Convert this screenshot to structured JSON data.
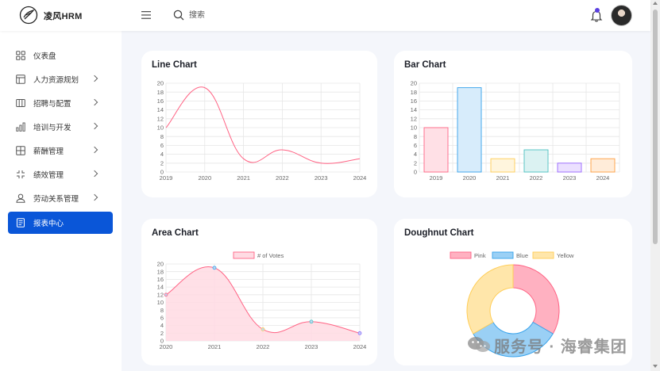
{
  "header": {
    "logo_text": "凌风HRM",
    "search_placeholder": "搜索"
  },
  "sidebar": {
    "items": [
      {
        "label": "仪表盘",
        "icon": "dashboard-icon",
        "has_chevron": false
      },
      {
        "label": "人力资源规划",
        "icon": "layout-icon",
        "has_chevron": true
      },
      {
        "label": "招聘与配置",
        "icon": "columns-icon",
        "has_chevron": true
      },
      {
        "label": "培训与开发",
        "icon": "bar-chart-icon",
        "has_chevron": true
      },
      {
        "label": "薪酬管理",
        "icon": "grid-icon",
        "has_chevron": true
      },
      {
        "label": "绩效管理",
        "icon": "compress-icon",
        "has_chevron": true
      },
      {
        "label": "劳动关系管理",
        "icon": "user-icon",
        "has_chevron": true
      },
      {
        "label": "报表中心",
        "icon": "document-icon",
        "has_chevron": false,
        "active": true
      }
    ]
  },
  "cards": {
    "line": {
      "title": "Line Chart"
    },
    "bar": {
      "title": "Bar Chart"
    },
    "area": {
      "title": "Area Chart"
    },
    "doughnut": {
      "title": "Doughnut Chart"
    }
  },
  "chart_data": [
    {
      "type": "line",
      "categories": [
        "2019",
        "2020",
        "2021",
        "2022",
        "2023",
        "2024"
      ],
      "values": [
        10,
        19,
        3,
        5,
        2,
        3
      ],
      "ylim": [
        0,
        20
      ],
      "yticks": [
        0,
        2,
        4,
        6,
        8,
        10,
        12,
        14,
        16,
        18,
        20
      ],
      "color": "#ff6384",
      "grid": true
    },
    {
      "type": "bar",
      "categories": [
        "2019",
        "2020",
        "2021",
        "2022",
        "2023",
        "2024"
      ],
      "values": [
        10,
        19,
        3,
        5,
        2,
        3
      ],
      "ylim": [
        0,
        20
      ],
      "yticks": [
        0,
        2,
        4,
        6,
        8,
        10,
        12,
        14,
        16,
        18,
        20
      ],
      "fill_colors": [
        "#ffe0e6",
        "#d7ecfb",
        "#fff5dd",
        "#dbf2f2",
        "#ebe0ff",
        "#ffecd9"
      ],
      "border_colors": [
        "#ff6384",
        "#36a2eb",
        "#ffce56",
        "#4bc0c0",
        "#9966ff",
        "#ff9f40"
      ],
      "grid": true
    },
    {
      "type": "area",
      "categories": [
        "2020",
        "2021",
        "2022",
        "2023",
        "2024"
      ],
      "series": [
        {
          "name": "# of Votes",
          "values": [
            12,
            19,
            3,
            5,
            2
          ]
        }
      ],
      "ylim": [
        0,
        20
      ],
      "yticks": [
        0,
        2,
        4,
        6,
        8,
        10,
        12,
        14,
        16,
        18,
        20
      ],
      "color": "#ff6384",
      "fill": "#ffdbe3",
      "legend": "top",
      "grid": true
    },
    {
      "type": "pie",
      "categories": [
        "Pink",
        "Blue",
        "Yellow"
      ],
      "values": [
        300,
        300,
        300
      ],
      "colors": [
        "#ff6384",
        "#36a2eb",
        "#ffcd56"
      ],
      "fills": [
        "#ffb1c1",
        "#9ad0f5",
        "#ffe6aa"
      ],
      "legend": "top"
    }
  ],
  "watermark": {
    "text": "服务号 · 海睿集团"
  }
}
